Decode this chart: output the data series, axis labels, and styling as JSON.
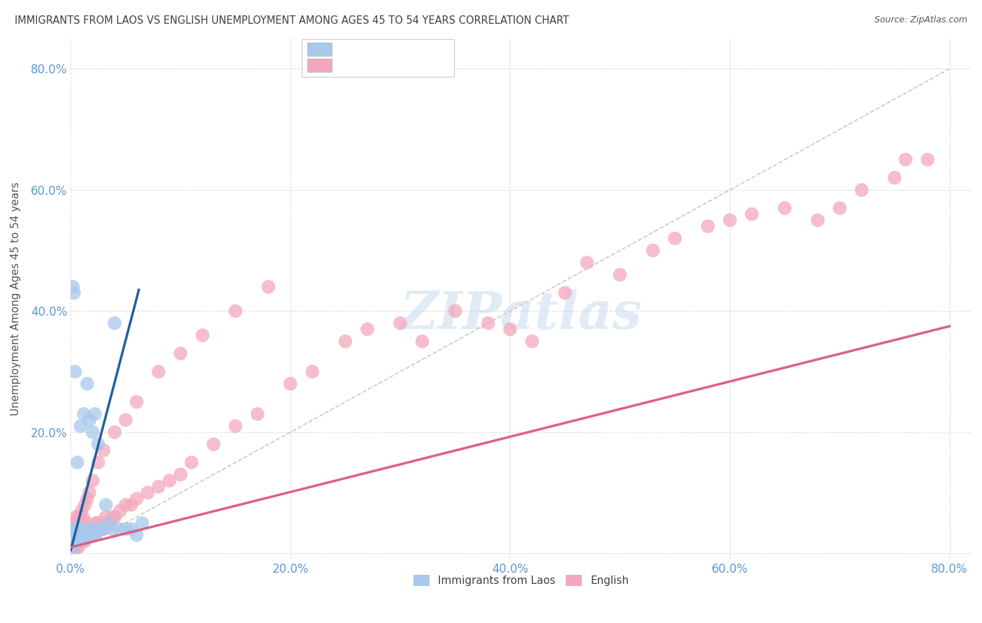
{
  "title": "IMMIGRANTS FROM LAOS VS ENGLISH UNEMPLOYMENT AMONG AGES 45 TO 54 YEARS CORRELATION CHART",
  "source": "Source: ZipAtlas.com",
  "ylabel": "Unemployment Among Ages 45 to 54 years",
  "xlim": [
    0.0,
    0.82
  ],
  "ylim": [
    -0.01,
    0.85
  ],
  "xticks": [
    0.0,
    0.2,
    0.4,
    0.6,
    0.8
  ],
  "yticks": [
    0.0,
    0.2,
    0.4,
    0.6,
    0.8
  ],
  "xticklabels": [
    "0.0%",
    "20.0%",
    "40.0%",
    "60.0%",
    "80.0%"
  ],
  "yticklabels": [
    "",
    "20.0%",
    "40.0%",
    "60.0%",
    "80.0%"
  ],
  "legend_label1": "Immigrants from Laos",
  "legend_label2": "English",
  "color_laos": "#A8C8EC",
  "color_english": "#F4A8BC",
  "color_title": "#404040",
  "color_axis_ticks": "#5B9BD5",
  "background_color": "#FFFFFF",
  "watermark": "ZIPatlas",
  "laos_trend_x": [
    0.0,
    0.062
  ],
  "laos_trend_y": [
    0.005,
    0.435
  ],
  "eng_trend_x": [
    0.0,
    0.8
  ],
  "eng_trend_y": [
    0.01,
    0.375
  ],
  "laos_x": [
    0.001,
    0.002,
    0.002,
    0.003,
    0.003,
    0.003,
    0.004,
    0.004,
    0.004,
    0.005,
    0.005,
    0.005,
    0.006,
    0.006,
    0.006,
    0.007,
    0.007,
    0.008,
    0.008,
    0.009,
    0.009,
    0.01,
    0.01,
    0.011,
    0.012,
    0.013,
    0.014,
    0.015,
    0.016,
    0.017,
    0.018,
    0.019,
    0.02,
    0.021,
    0.022,
    0.023,
    0.025,
    0.027,
    0.03,
    0.032,
    0.035,
    0.038,
    0.04,
    0.044,
    0.05,
    0.055,
    0.06,
    0.065,
    0.002,
    0.003,
    0.004,
    0.006
  ],
  "laos_y": [
    0.02,
    0.01,
    0.03,
    0.02,
    0.03,
    0.04,
    0.02,
    0.03,
    0.04,
    0.02,
    0.03,
    0.04,
    0.02,
    0.15,
    0.03,
    0.02,
    0.03,
    0.03,
    0.04,
    0.03,
    0.21,
    0.03,
    0.04,
    0.03,
    0.23,
    0.04,
    0.03,
    0.28,
    0.03,
    0.22,
    0.03,
    0.03,
    0.2,
    0.04,
    0.23,
    0.03,
    0.18,
    0.04,
    0.04,
    0.08,
    0.05,
    0.04,
    0.38,
    0.04,
    0.04,
    0.04,
    0.03,
    0.05,
    0.44,
    0.43,
    0.3,
    0.03
  ],
  "english_x": [
    0.001,
    0.002,
    0.002,
    0.002,
    0.003,
    0.003,
    0.003,
    0.004,
    0.004,
    0.004,
    0.005,
    0.005,
    0.005,
    0.006,
    0.006,
    0.006,
    0.007,
    0.007,
    0.007,
    0.008,
    0.008,
    0.008,
    0.009,
    0.009,
    0.01,
    0.01,
    0.01,
    0.011,
    0.011,
    0.012,
    0.012,
    0.013,
    0.013,
    0.014,
    0.015,
    0.015,
    0.016,
    0.017,
    0.018,
    0.019,
    0.02,
    0.021,
    0.022,
    0.023,
    0.025,
    0.027,
    0.03,
    0.032,
    0.035,
    0.038,
    0.04,
    0.045,
    0.05,
    0.055,
    0.06,
    0.07,
    0.08,
    0.09,
    0.1,
    0.11,
    0.13,
    0.15,
    0.17,
    0.2,
    0.22,
    0.25,
    0.27,
    0.3,
    0.32,
    0.35,
    0.38,
    0.4,
    0.42,
    0.45,
    0.47,
    0.5,
    0.53,
    0.55,
    0.58,
    0.6,
    0.62,
    0.65,
    0.68,
    0.7,
    0.72,
    0.75,
    0.76,
    0.78,
    0.002,
    0.003,
    0.004,
    0.005,
    0.006,
    0.007,
    0.008,
    0.009,
    0.01,
    0.011,
    0.013,
    0.015,
    0.017,
    0.02,
    0.025,
    0.03,
    0.04,
    0.05,
    0.06,
    0.08,
    0.1,
    0.12,
    0.15,
    0.18
  ],
  "english_y": [
    0.01,
    0.02,
    0.03,
    0.04,
    0.01,
    0.02,
    0.03,
    0.02,
    0.03,
    0.04,
    0.01,
    0.02,
    0.05,
    0.02,
    0.03,
    0.04,
    0.01,
    0.02,
    0.03,
    0.02,
    0.03,
    0.05,
    0.02,
    0.03,
    0.02,
    0.03,
    0.04,
    0.02,
    0.03,
    0.03,
    0.04,
    0.02,
    0.04,
    0.03,
    0.03,
    0.05,
    0.03,
    0.04,
    0.03,
    0.04,
    0.04,
    0.03,
    0.04,
    0.05,
    0.05,
    0.04,
    0.05,
    0.06,
    0.05,
    0.06,
    0.06,
    0.07,
    0.08,
    0.08,
    0.09,
    0.1,
    0.11,
    0.12,
    0.13,
    0.15,
    0.18,
    0.21,
    0.23,
    0.28,
    0.3,
    0.35,
    0.37,
    0.38,
    0.35,
    0.4,
    0.38,
    0.37,
    0.35,
    0.43,
    0.48,
    0.46,
    0.5,
    0.52,
    0.54,
    0.55,
    0.56,
    0.57,
    0.55,
    0.57,
    0.6,
    0.62,
    0.65,
    0.65,
    0.04,
    0.05,
    0.04,
    0.06,
    0.05,
    0.06,
    0.05,
    0.06,
    0.07,
    0.06,
    0.08,
    0.09,
    0.1,
    0.12,
    0.15,
    0.17,
    0.2,
    0.22,
    0.25,
    0.3,
    0.33,
    0.36,
    0.4,
    0.44
  ]
}
